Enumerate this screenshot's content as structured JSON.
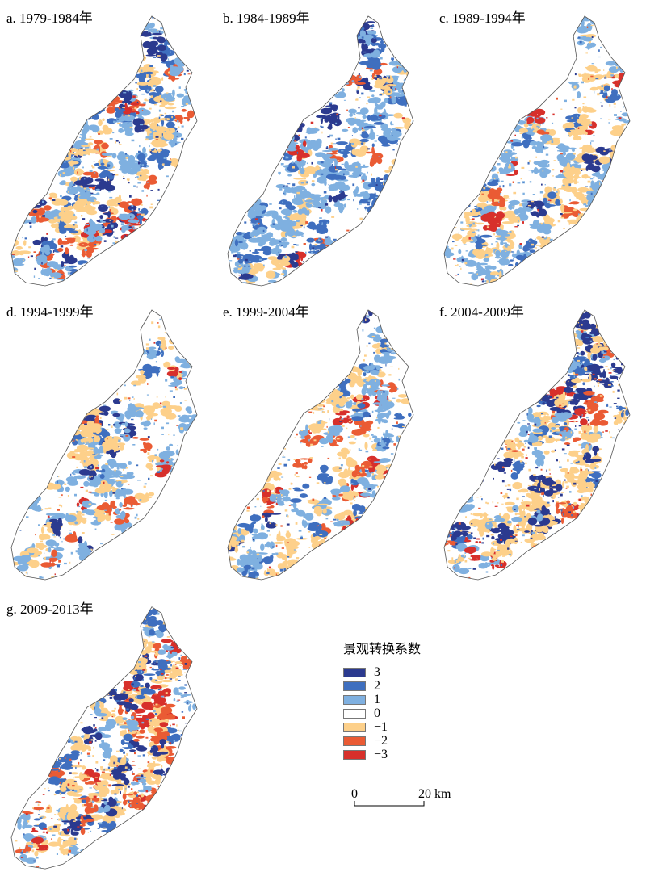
{
  "panels": [
    {
      "label": "a. 1979-1984年"
    },
    {
      "label": "b. 1984-1989年"
    },
    {
      "label": "c. 1989-1994年"
    },
    {
      "label": "d. 1994-1999年"
    },
    {
      "label": "e. 1999-2004年"
    },
    {
      "label": "f. 2004-2009年"
    },
    {
      "label": "g. 2009-2013年"
    }
  ],
  "legend": {
    "title": "景观转换系数",
    "items": [
      {
        "value": "3",
        "color": "#2b3a8f"
      },
      {
        "value": "2",
        "color": "#3f6fbf"
      },
      {
        "value": "1",
        "color": "#7fb0e0"
      },
      {
        "value": "0",
        "color": "#ffffff"
      },
      {
        "value": "−1",
        "color": "#fdd08a"
      },
      {
        "value": "−2",
        "color": "#ea5b34"
      },
      {
        "value": "−3",
        "color": "#d7302b"
      }
    ]
  },
  "scalebar": {
    "start_label": "0",
    "end_label": "20 km"
  }
}
